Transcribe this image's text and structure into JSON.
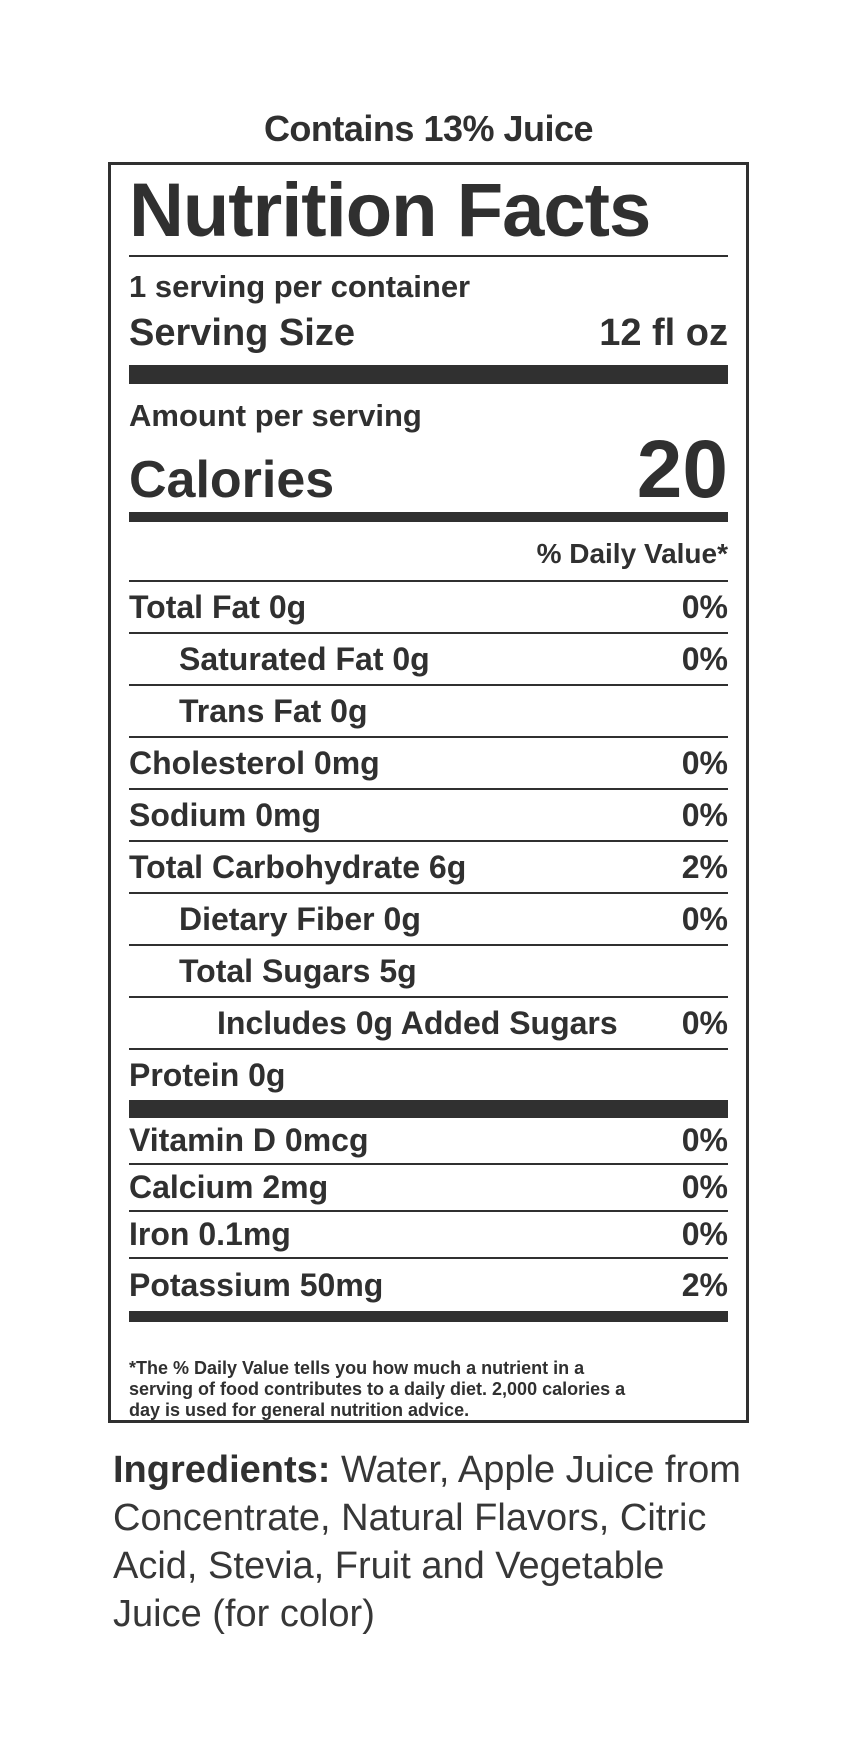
{
  "page": {
    "contains_text": "Contains 13% Juice"
  },
  "label": {
    "title": "Nutrition Facts",
    "servings_per_container": "1 serving per container",
    "serving_size_label": "Serving Size",
    "serving_size_value": "12 fl oz",
    "amount_per_serving": "Amount per serving",
    "calories_label": "Calories",
    "calories_value": "20",
    "daily_value_header": "% Daily Value*",
    "rows": [
      {
        "label": "Total Fat 0g",
        "value": "0%"
      },
      {
        "label": "Saturated Fat 0g",
        "value": "0%"
      },
      {
        "label": "Trans Fat 0g",
        "value": ""
      },
      {
        "label": "Cholesterol 0mg",
        "value": "0%"
      },
      {
        "label": "Sodium 0mg",
        "value": "0%"
      },
      {
        "label": "Total Carbohydrate 6g",
        "value": "2%"
      },
      {
        "label": "Dietary Fiber 0g",
        "value": "0%"
      },
      {
        "label": "Total Sugars 5g",
        "value": ""
      },
      {
        "label": "Includes 0g Added Sugars",
        "value": "0%"
      },
      {
        "label": "Protein 0g",
        "value": ""
      }
    ],
    "micronutrients": [
      {
        "label": "Vitamin D 0mcg",
        "value": "0%"
      },
      {
        "label": "Calcium 2mg",
        "value": "0%"
      },
      {
        "label": "Iron 0.1mg",
        "value": "0%"
      },
      {
        "label": "Potassium 50mg",
        "value": "2%"
      }
    ],
    "footnote_lines": [
      "*The % Daily Value tells you how much a nutrient in a",
      "serving of food contributes to a daily diet. 2,000 calories a",
      "day is used for general nutrition advice."
    ]
  },
  "ingredients": {
    "label": "Ingredients:",
    "lines": [
      "Water, Apple Juice from",
      "Concentrate, Natural Flavors, Citric",
      "Acid, Stevia, Fruit and Vegetable",
      "Juice (for color)"
    ]
  },
  "colors": {
    "text": "#303030",
    "background": "#ffffff"
  }
}
